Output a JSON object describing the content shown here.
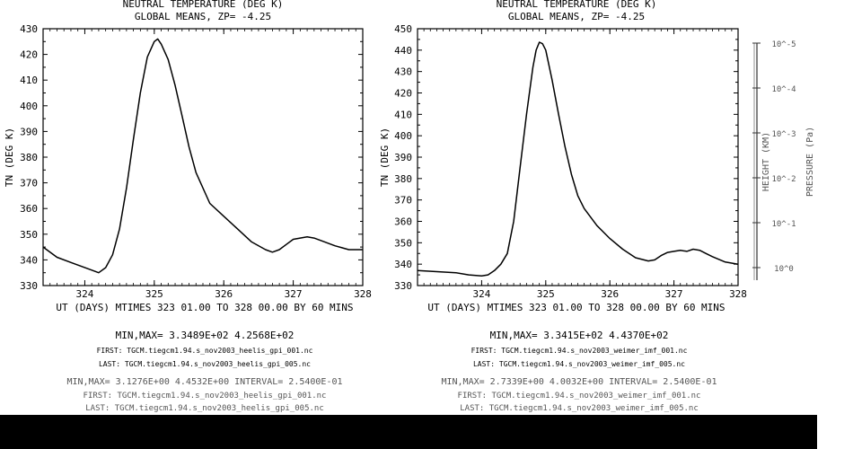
{
  "chart_data": [
    {
      "type": "line",
      "title": "NEUTRAL TEMPERATURE (DEG K)",
      "subtitle": "GLOBAL MEANS, ZP= -4.25",
      "ylabel": "TN (DEG K)",
      "xlabel": "UT (DAYS) MTIMES 323 01.00 TO 328 00.00 BY   60 MINS",
      "xlim": [
        323.4,
        328.0
      ],
      "ylim": [
        330,
        430
      ],
      "xticks": [
        "324",
        "325",
        "326",
        "327",
        "328"
      ],
      "yticks": [
        "330",
        "340",
        "350",
        "360",
        "370",
        "380",
        "390",
        "400",
        "410",
        "420",
        "430"
      ],
      "x": [
        323.4,
        323.6,
        323.8,
        323.95,
        324.1,
        324.2,
        324.3,
        324.4,
        324.5,
        324.6,
        324.7,
        324.8,
        324.9,
        325.0,
        325.05,
        325.1,
        325.2,
        325.3,
        325.4,
        325.5,
        325.6,
        325.8,
        326.0,
        326.2,
        326.4,
        326.6,
        326.7,
        326.8,
        326.9,
        327.0,
        327.1,
        327.2,
        327.3,
        327.4,
        327.5,
        327.6,
        327.8,
        328.0
      ],
      "y": [
        345,
        341,
        339,
        337.5,
        336,
        335,
        337,
        342,
        352,
        368,
        387,
        405,
        419,
        425,
        426,
        424,
        418,
        408,
        396,
        384,
        374,
        362,
        357,
        352,
        347,
        344,
        343,
        344,
        346,
        348,
        348.5,
        349,
        348.5,
        347.5,
        346.5,
        345.5,
        344,
        344
      ],
      "minmax_text": "MIN,MAX=  3.3489E+02  4.2568E+02",
      "first_file": "FIRST:  TGCM.tiegcm1.94.s_nov2003_heelis_gpi_001.nc",
      "last_file": "LAST:   TGCM.tiegcm1.94.s_nov2003_heelis_gpi_005.nc",
      "blurred_lines": [
        "MIN,MAX=  3.1276E+00  4.4532E+00  INTERVAL=  2.5400E-01",
        "FIRST:  TGCM.tiegcm1.94.s_nov2003_heelis_gpi_001.nc",
        "LAST:   TGCM.tiegcm1.94.s_nov2003_heelis_gpi_005.nc"
      ]
    },
    {
      "type": "line",
      "title": "NEUTRAL TEMPERATURE (DEG K)",
      "subtitle": "GLOBAL MEANS, ZP= -4.25",
      "ylabel": "TN (DEG K)",
      "xlabel": "UT (DAYS) MTIMES 323 01.00 TO 328 00.00 BY   60 MINS",
      "xlim": [
        323.0,
        328.0
      ],
      "ylim": [
        330,
        450
      ],
      "xticks": [
        "324",
        "325",
        "326",
        "327",
        "328"
      ],
      "yticks": [
        "330",
        "340",
        "350",
        "360",
        "370",
        "380",
        "390",
        "400",
        "410",
        "420",
        "430",
        "440",
        "450"
      ],
      "x": [
        323.0,
        323.3,
        323.6,
        323.8,
        324.0,
        324.1,
        324.2,
        324.3,
        324.4,
        324.5,
        324.6,
        324.7,
        324.8,
        324.85,
        324.9,
        324.95,
        325.0,
        325.1,
        325.2,
        325.3,
        325.4,
        325.5,
        325.6,
        325.8,
        326.0,
        326.2,
        326.4,
        326.6,
        326.7,
        326.8,
        326.9,
        327.0,
        327.1,
        327.2,
        327.3,
        327.4,
        327.5,
        327.6,
        327.8,
        328.0
      ],
      "y": [
        337,
        336.5,
        336,
        335,
        334.5,
        335,
        337,
        340,
        345,
        360,
        385,
        410,
        432,
        440,
        443.7,
        443,
        440,
        426,
        410,
        395,
        382,
        372,
        366,
        358,
        352,
        347,
        343,
        341.5,
        342,
        344,
        345.5,
        346,
        346.5,
        346,
        347,
        346.5,
        345,
        343.5,
        341,
        340
      ],
      "minmax_text": "MIN,MAX=  3.3415E+02  4.4370E+02",
      "first_file": "FIRST:  TGCM.tiegcm1.94.s_nov2003_weimer_imf_001.nc",
      "last_file": "LAST:   TGCM.tiegcm1.94.s_nov2003_weimer_imf_005.nc",
      "blurred_lines": [
        "MIN,MAX=  2.7339E+00  4.0032E+00  INTERVAL=  2.5400E-01",
        "FIRST:  TGCM.tiegcm1.94.s_nov2003_weimer_imf_001.nc",
        "LAST:   TGCM.tiegcm1.94.s_nov2003_weimer_imf_005.nc"
      ]
    }
  ],
  "right_axis": {
    "label_left": "HEIGHT (KM)",
    "label_right": "PRESSURE (Pa)",
    "ticks": [
      "10^-5",
      "10^-4",
      "10^-3",
      "10^-2",
      "10^-1",
      "10^0"
    ]
  }
}
